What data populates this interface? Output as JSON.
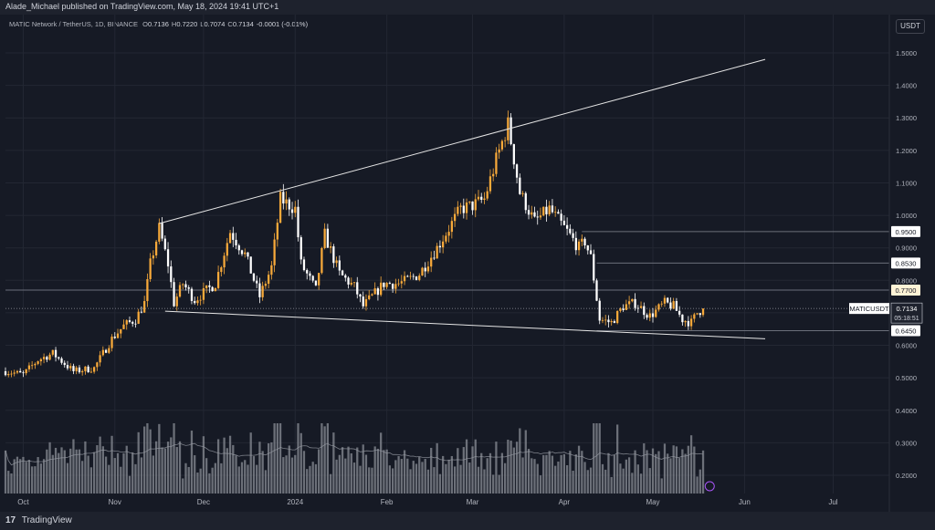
{
  "header": {
    "publisher": "Alade_Michael published on TradingView.com, May 18, 2024 19:41 UTC+1",
    "pair": "MATIC Network / TetherUS, 1D, BINANCE",
    "ohlc": [
      {
        "k": "O",
        "v": "0.7136"
      },
      {
        "k": "H",
        "v": "0.7220"
      },
      {
        "k": "L",
        "v": "0.7074"
      },
      {
        "k": "C",
        "v": "0.7134"
      },
      {
        "k": "",
        "v": "-0.0001 (-0.01%)"
      }
    ],
    "currency": "USDT"
  },
  "footer": {
    "logo": "17",
    "brand": "TradingView"
  },
  "colors": {
    "background": "#161a25",
    "up_candle": "#f7a93a",
    "down_candle": "#ffffff",
    "volume": "#8a8d95",
    "volume_ma": "#9598a1",
    "trendline": "#e6e6e6",
    "level_line": "#6b6f7a",
    "label_bg": "#ffffff",
    "label_highlight": "#fff3d6"
  },
  "chart_data": {
    "type": "candlestick",
    "symbol": "MATICUSDT",
    "interval": "1D",
    "xlim": [
      "2023-09-25",
      "2024-07-20"
    ],
    "ylim": [
      0.15,
      1.55
    ],
    "y_scale": "linear",
    "grid": true,
    "y_ticks": [
      "1.5000",
      "1.4000",
      "1.3000",
      "1.2000",
      "1.1000",
      "1.0000",
      "0.9000",
      "0.8000",
      "0.7000",
      "0.6000",
      "0.5000",
      "0.4000",
      "0.3000",
      "0.2000"
    ],
    "x_ticks": [
      {
        "date": "2023-10-01",
        "label": "Oct"
      },
      {
        "date": "2023-11-01",
        "label": "Nov"
      },
      {
        "date": "2023-12-01",
        "label": "Dec"
      },
      {
        "date": "2024-01-01",
        "label": "2024"
      },
      {
        "date": "2024-02-01",
        "label": "Feb"
      },
      {
        "date": "2024-03-01",
        "label": "Mar"
      },
      {
        "date": "2024-04-01",
        "label": "Apr"
      },
      {
        "date": "2024-05-01",
        "label": "May"
      },
      {
        "date": "2024-06-01",
        "label": "Jun"
      },
      {
        "date": "2024-07-01",
        "label": "Jul"
      }
    ],
    "start_date": "2023-09-25",
    "close_path": [
      [
        "2023-09-25",
        0.52
      ],
      [
        "2023-10-01",
        0.51
      ],
      [
        "2023-10-06",
        0.555
      ],
      [
        "2023-10-11",
        0.575
      ],
      [
        "2023-10-18",
        0.52
      ],
      [
        "2023-10-25",
        0.53
      ],
      [
        "2023-10-31",
        0.62
      ],
      [
        "2023-11-04",
        0.66
      ],
      [
        "2023-11-08",
        0.68
      ],
      [
        "2023-11-11",
        0.73
      ],
      [
        "2023-11-13",
        0.85
      ],
      [
        "2023-11-16",
        0.96
      ],
      [
        "2023-11-19",
        0.85
      ],
      [
        "2023-11-21",
        0.73
      ],
      [
        "2023-11-24",
        0.79
      ],
      [
        "2023-11-28",
        0.74
      ],
      [
        "2023-12-05",
        0.79
      ],
      [
        "2023-12-10",
        0.95
      ],
      [
        "2023-12-15",
        0.88
      ],
      [
        "2023-12-20",
        0.75
      ],
      [
        "2023-12-24",
        0.84
      ],
      [
        "2023-12-27",
        1.05
      ],
      [
        "2024-01-01",
        1.02
      ],
      [
        "2024-01-03",
        0.85
      ],
      [
        "2024-01-08",
        0.77
      ],
      [
        "2024-01-11",
        0.94
      ],
      [
        "2024-01-16",
        0.82
      ],
      [
        "2024-01-21",
        0.78
      ],
      [
        "2024-01-24",
        0.72
      ],
      [
        "2024-01-31",
        0.79
      ],
      [
        "2024-02-05",
        0.79
      ],
      [
        "2024-02-08",
        0.8
      ],
      [
        "2024-02-12",
        0.82
      ],
      [
        "2024-02-18",
        0.9
      ],
      [
        "2024-02-26",
        1.02
      ],
      [
        "2024-03-01",
        1.03
      ],
      [
        "2024-03-05",
        1.05
      ],
      [
        "2024-03-09",
        1.17
      ],
      [
        "2024-03-13",
        1.28
      ],
      [
        "2024-03-17",
        1.07
      ],
      [
        "2024-03-22",
        0.98
      ],
      [
        "2024-03-27",
        1.02
      ],
      [
        "2024-04-02",
        0.95
      ],
      [
        "2024-04-06",
        0.9
      ],
      [
        "2024-04-08",
        0.92
      ],
      [
        "2024-04-10",
        0.87
      ],
      [
        "2024-04-13",
        0.68
      ],
      [
        "2024-04-17",
        0.67
      ],
      [
        "2024-04-21",
        0.72
      ],
      [
        "2024-04-25",
        0.73
      ],
      [
        "2024-04-30",
        0.69
      ],
      [
        "2024-05-05",
        0.73
      ],
      [
        "2024-05-08",
        0.72
      ],
      [
        "2024-05-11",
        0.68
      ],
      [
        "2024-05-14",
        0.67
      ],
      [
        "2024-05-16",
        0.7
      ],
      [
        "2024-05-18",
        0.7134
      ]
    ],
    "lines": [
      {
        "name": "upper-trendline",
        "from": [
          "2023-11-16",
          0.975
        ],
        "to": [
          "2024-06-08",
          1.48
        ]
      },
      {
        "name": "lower-trendline",
        "from": [
          "2023-11-18",
          0.705
        ],
        "to": [
          "2024-06-08",
          0.62
        ]
      }
    ],
    "levels": [
      {
        "value": 0.95,
        "label": "0.9500",
        "from": "2024-04-07"
      },
      {
        "value": 0.853,
        "label": "0.8530",
        "from": "2024-04-12"
      },
      {
        "value": 0.77,
        "label": "0.7700",
        "from": "2023-09-25",
        "highlight": true
      },
      {
        "value": 0.645,
        "label": "0.6450",
        "from": "2024-04-12"
      }
    ],
    "last_price": {
      "label": "MATICUSDT",
      "price": "0.7134",
      "countdown": "05:18:51",
      "value": 0.7134
    },
    "volume": {
      "ylim_fraction": 0.24,
      "ma": true
    }
  }
}
